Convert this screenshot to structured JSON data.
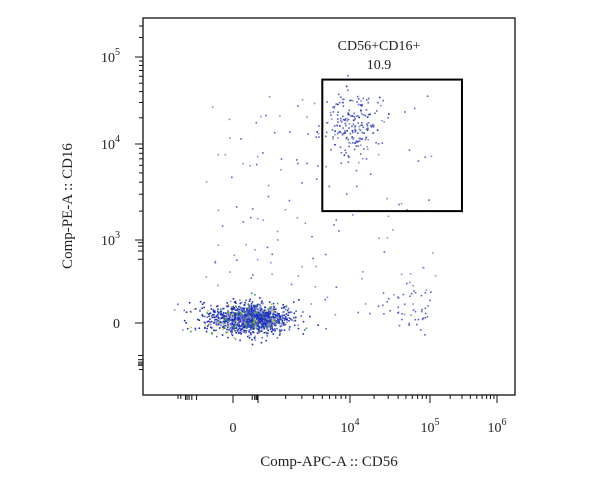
{
  "chart_data": {
    "type": "scatter",
    "xlabel": "Comp-APC-A :: CD56",
    "ylabel": "Comp-PE-A :: CD16",
    "x_scale": "biexponential",
    "y_scale": "biexponential",
    "x_ticks": [
      {
        "value": 0,
        "base": "0",
        "exp": ""
      },
      {
        "value": 10000,
        "base": "10",
        "exp": "4"
      },
      {
        "value": 100000,
        "base": "10",
        "exp": "5"
      },
      {
        "value": 1000000,
        "base": "10",
        "exp": "6"
      }
    ],
    "y_ticks": [
      {
        "value": 0,
        "base": "0",
        "exp": ""
      },
      {
        "value": 1000,
        "base": "10",
        "exp": "3"
      },
      {
        "value": 10000,
        "base": "10",
        "exp": "4"
      },
      {
        "value": 100000,
        "base": "10",
        "exp": "5"
      }
    ],
    "gate": {
      "name": "CD56+CD16+",
      "percent": "10.9",
      "x_range": [
        5000,
        300000
      ],
      "y_range": [
        2000,
        55000
      ]
    },
    "point_colors": [
      "#1a2fbf",
      "#5a64c8",
      "#8a8fd0",
      "#3aa040",
      "#c8c040"
    ],
    "grid": false,
    "legend": "none"
  }
}
